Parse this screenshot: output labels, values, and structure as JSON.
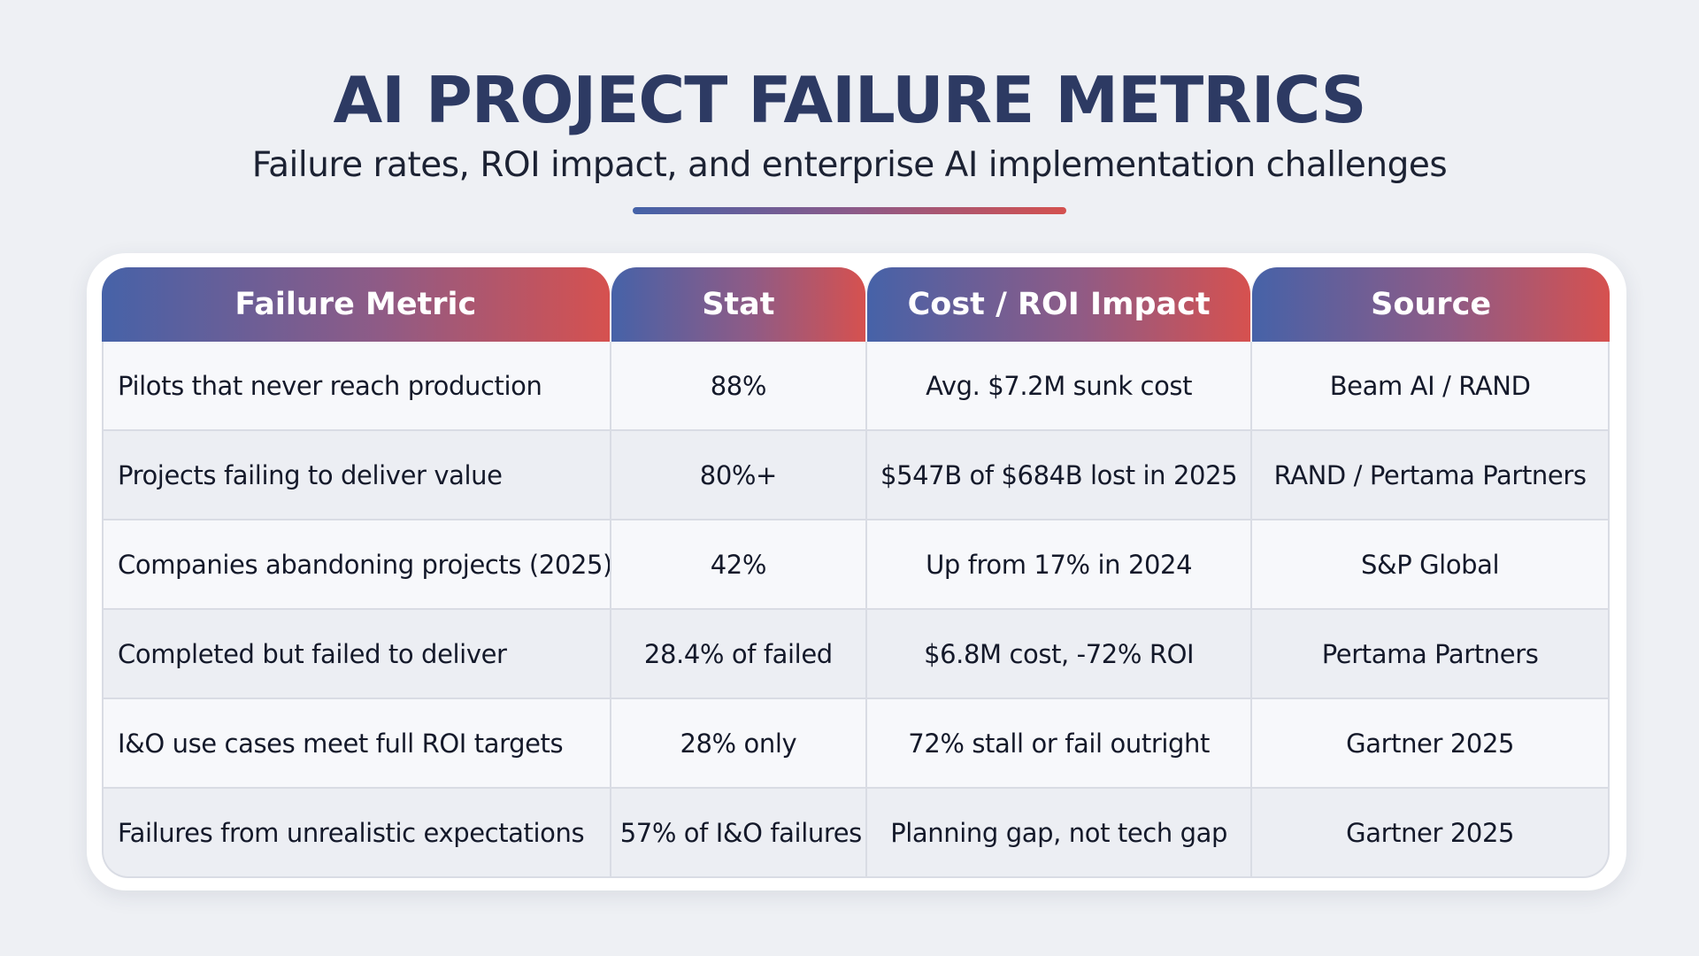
{
  "header": {
    "title": "AI PROJECT FAILURE METRICS",
    "subtitle": "Failure rates, ROI impact, and enterprise AI implementation challenges"
  },
  "colors": {
    "title": "#2d3a63",
    "header_gradient_start": "#4662a8",
    "header_gradient_end": "#d6514f",
    "background": "#eef0f4"
  },
  "table": {
    "columns": [
      "Failure Metric",
      "Stat",
      "Cost / ROI Impact",
      "Source"
    ],
    "rows": [
      [
        "Pilots that never reach production",
        "88%",
        "Avg. $7.2M sunk cost",
        "Beam AI / RAND"
      ],
      [
        "Projects failing to deliver value",
        "80%+",
        "$547B of $684B lost in 2025",
        "RAND / Pertama Partners"
      ],
      [
        "Companies abandoning projects (2025)",
        "42%",
        "Up from 17% in 2024",
        "S&P Global"
      ],
      [
        "Completed but failed to deliver",
        "28.4% of failed",
        "$6.8M cost, -72% ROI",
        "Pertama Partners"
      ],
      [
        "I&O use cases meet full ROI targets",
        "28% only",
        "72% stall or fail outright",
        "Gartner 2025"
      ],
      [
        "Failures from unrealistic expectations",
        "57% of I&O failures",
        "Planning gap, not tech gap",
        "Gartner 2025"
      ]
    ]
  }
}
